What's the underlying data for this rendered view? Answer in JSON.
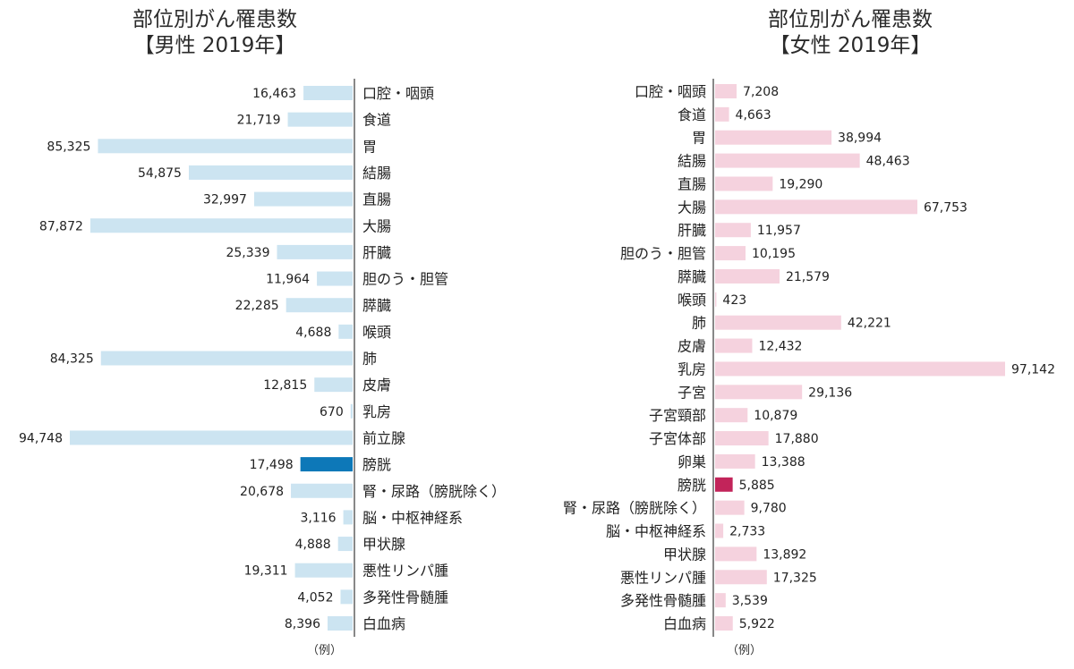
{
  "chart_data": [
    {
      "type": "bar",
      "orientation": "horizontal",
      "title": "部位別がん罹患数",
      "subtitle": "【男性 2019年】",
      "note": "（例）",
      "categories": [
        "口腔・咽頭",
        "食道",
        "胃",
        "結腸",
        "直腸",
        "大腸",
        "肝臓",
        "胆のう・胆管",
        "膵臓",
        "喉頭",
        "肺",
        "皮膚",
        "乳房",
        "前立腺",
        "膀胱",
        "腎・尿路（膀胱除く）",
        "脳・中枢神経系",
        "甲状腺",
        "悪性リンパ腫",
        "多発性骨髄腫",
        "白血病"
      ],
      "values": [
        16463,
        21719,
        85325,
        54875,
        32997,
        87872,
        25339,
        11964,
        22285,
        4688,
        84325,
        12815,
        670,
        94748,
        17498,
        20678,
        3116,
        4888,
        19311,
        4052,
        8396
      ],
      "value_labels": [
        "16,463",
        "21,719",
        "85,325",
        "54,875",
        "32,997",
        "87,872",
        "25,339",
        "11,964",
        "22,285",
        "4,688",
        "84,325",
        "12,815",
        "670",
        "94,748",
        "17,498",
        "20,678",
        "3,116",
        "4,888",
        "19,311",
        "4,052",
        "8,396"
      ],
      "highlight_category": "膀胱",
      "bar_color": "#cce4f1",
      "highlight_color": "#0d78b8",
      "direction": "leftward"
    },
    {
      "type": "bar",
      "orientation": "horizontal",
      "title": "部位別がん罹患数",
      "subtitle": "【女性 2019年】",
      "note": "（例）",
      "categories": [
        "口腔・咽頭",
        "食道",
        "胃",
        "結腸",
        "直腸",
        "大腸",
        "肝臓",
        "胆のう・胆管",
        "膵臓",
        "喉頭",
        "肺",
        "皮膚",
        "乳房",
        "子宮",
        "子宮頸部",
        "子宮体部",
        "卵巣",
        "膀胱",
        "腎・尿路（膀胱除く）",
        "脳・中枢神経系",
        "甲状腺",
        "悪性リンパ腫",
        "多発性骨髄腫",
        "白血病"
      ],
      "values": [
        7208,
        4663,
        38994,
        48463,
        19290,
        67753,
        11957,
        10195,
        21579,
        423,
        42221,
        12432,
        97142,
        29136,
        10879,
        17880,
        13388,
        5885,
        9780,
        2733,
        13892,
        17325,
        3539,
        5922
      ],
      "value_labels": [
        "7,208",
        "4,663",
        "38,994",
        "48,463",
        "19,290",
        "67,753",
        "11,957",
        "10,195",
        "21,579",
        "423",
        "42,221",
        "12,432",
        "97,142",
        "29,136",
        "10,879",
        "17,880",
        "13,388",
        "5,885",
        "9,780",
        "2,733",
        "13,892",
        "17,325",
        "3,539",
        "5,922"
      ],
      "highlight_category": "膀胱",
      "bar_color": "#f5d2de",
      "highlight_color": "#c2245a",
      "direction": "rightward"
    }
  ],
  "colors": {
    "axis": "#888888",
    "text": "#222222"
  }
}
